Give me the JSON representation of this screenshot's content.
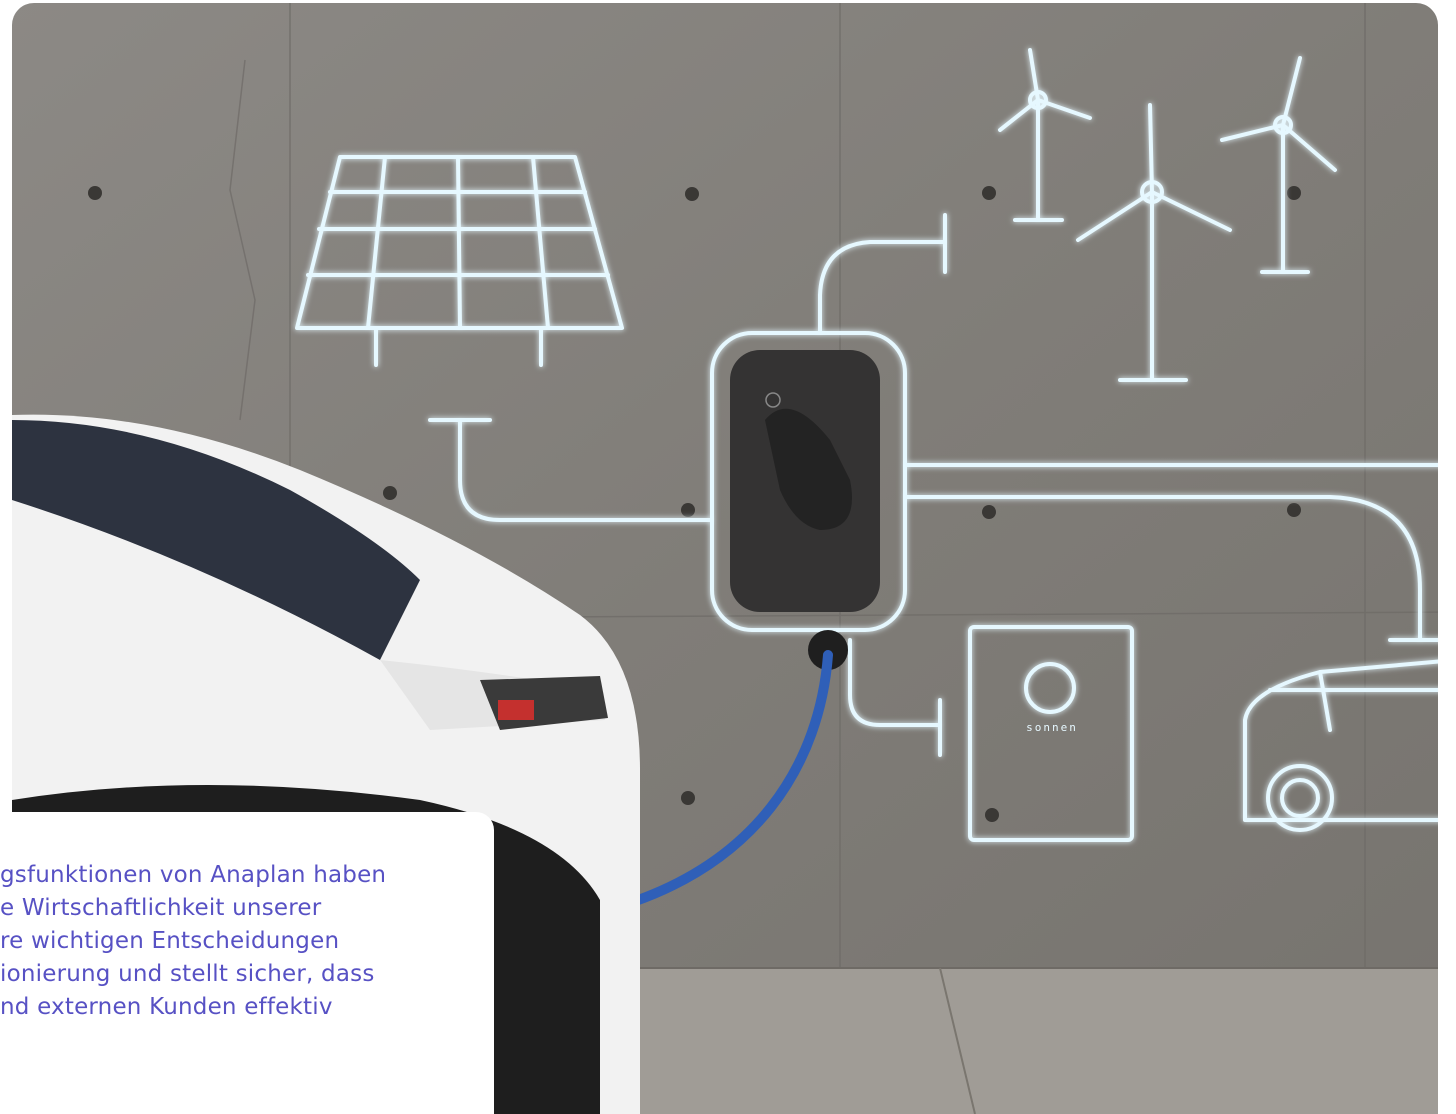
{
  "quote": {
    "lines": [
      "gsfunktionen von Anaplan haben",
      "e Wirtschaftlichkeit unserer",
      "re wichtigen Entscheidungen",
      "ionierung und stellt sicher, dass",
      "nd externen Kunden effektiv"
    ]
  },
  "image": {
    "battery_label": "sonnen"
  }
}
